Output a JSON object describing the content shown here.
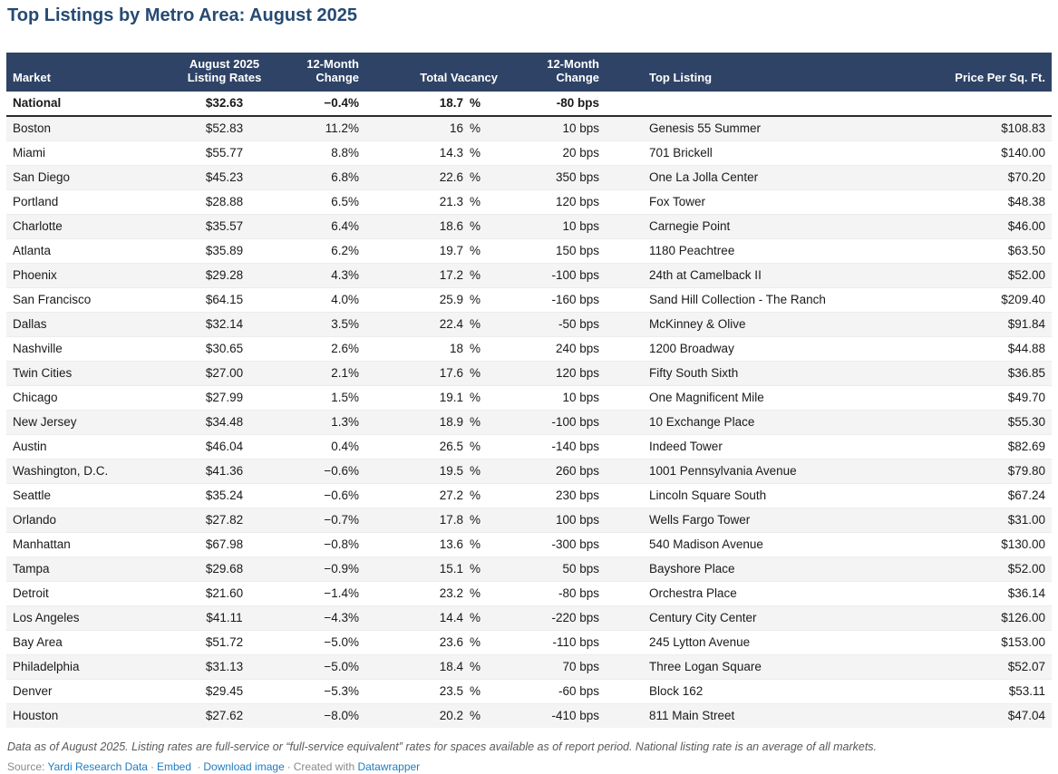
{
  "title": "Top Listings by Metro Area: August 2025",
  "colors": {
    "header_bg": "#2e4366",
    "title_text": "#264a73",
    "stripe": "#f4f4f4",
    "national_border": "#2b2b2b",
    "link_blue": "#1e7cc2",
    "note_gray": "#595959"
  },
  "chart_data": {
    "type": "table",
    "title": "Top Listings by Metro Area: August 2025",
    "columns": [
      {
        "id": "market",
        "label_lines": [
          "Market"
        ],
        "align": "left"
      },
      {
        "id": "rate",
        "label_lines": [
          "August 2025",
          "Listing Rates"
        ],
        "align": "center"
      },
      {
        "id": "change",
        "label_lines": [
          "12-Month",
          "Change"
        ],
        "align": "right"
      },
      {
        "id": "vacancy",
        "label_lines": [
          "Total Vacancy"
        ],
        "align": "right"
      },
      {
        "id": "bps",
        "label_lines": [
          "12-Month",
          "Change"
        ],
        "align": "right"
      },
      {
        "id": "listing",
        "label_lines": [
          "Top Listing"
        ],
        "align": "left"
      },
      {
        "id": "price",
        "label_lines": [
          "Price Per Sq. Ft."
        ],
        "align": "right"
      }
    ],
    "vacancy_unit": "%",
    "rows": [
      {
        "national": true,
        "market": "National",
        "rate": "$32.63",
        "change": "−0.4%",
        "vacancy": "18.7",
        "bps": "-80 bps",
        "listing": "",
        "price": ""
      },
      {
        "market": "Boston",
        "rate": "$52.83",
        "change": "11.2%",
        "vacancy": "16",
        "bps": "10 bps",
        "listing": "Genesis 55 Summer",
        "price": "$108.83"
      },
      {
        "market": "Miami",
        "rate": "$55.77",
        "change": "8.8%",
        "vacancy": "14.3",
        "bps": "20 bps",
        "listing": "701 Brickell",
        "price": "$140.00"
      },
      {
        "market": "San Diego",
        "rate": "$45.23",
        "change": "6.8%",
        "vacancy": "22.6",
        "bps": "350 bps",
        "listing": "One La Jolla Center",
        "price": "$70.20"
      },
      {
        "market": "Portland",
        "rate": "$28.88",
        "change": "6.5%",
        "vacancy": "21.3",
        "bps": "120 bps",
        "listing": "Fox Tower",
        "price": "$48.38"
      },
      {
        "market": "Charlotte",
        "rate": "$35.57",
        "change": "6.4%",
        "vacancy": "18.6",
        "bps": "10 bps",
        "listing": "Carnegie Point",
        "price": "$46.00"
      },
      {
        "market": "Atlanta",
        "rate": "$35.89",
        "change": "6.2%",
        "vacancy": "19.7",
        "bps": "150 bps",
        "listing": "1180 Peachtree",
        "price": "$63.50"
      },
      {
        "market": "Phoenix",
        "rate": "$29.28",
        "change": "4.3%",
        "vacancy": "17.2",
        "bps": "-100 bps",
        "listing": "24th at Camelback II",
        "price": "$52.00"
      },
      {
        "market": "San Francisco",
        "rate": "$64.15",
        "change": "4.0%",
        "vacancy": "25.9",
        "bps": "-160 bps",
        "listing": "Sand Hill Collection - The Ranch",
        "price": "$209.40"
      },
      {
        "market": "Dallas",
        "rate": "$32.14",
        "change": "3.5%",
        "vacancy": "22.4",
        "bps": "-50 bps",
        "listing": "McKinney & Olive",
        "price": "$91.84"
      },
      {
        "market": "Nashville",
        "rate": "$30.65",
        "change": "2.6%",
        "vacancy": "18",
        "bps": "240 bps",
        "listing": "1200 Broadway",
        "price": "$44.88"
      },
      {
        "market": "Twin Cities",
        "rate": "$27.00",
        "change": "2.1%",
        "vacancy": "17.6",
        "bps": "120 bps",
        "listing": "Fifty South Sixth",
        "price": "$36.85"
      },
      {
        "market": "Chicago",
        "rate": "$27.99",
        "change": "1.5%",
        "vacancy": "19.1",
        "bps": "10 bps",
        "listing": "One Magnificent Mile",
        "price": "$49.70"
      },
      {
        "market": "New Jersey",
        "rate": "$34.48",
        "change": "1.3%",
        "vacancy": "18.9",
        "bps": "-100 bps",
        "listing": "10 Exchange Place",
        "price": "$55.30"
      },
      {
        "market": "Austin",
        "rate": "$46.04",
        "change": "0.4%",
        "vacancy": "26.5",
        "bps": "-140 bps",
        "listing": "Indeed Tower",
        "price": "$82.69"
      },
      {
        "market": "Washington, D.C.",
        "rate": "$41.36",
        "change": "−0.6%",
        "vacancy": "19.5",
        "bps": "260 bps",
        "listing": "1001 Pennsylvania Avenue",
        "price": "$79.80"
      },
      {
        "market": "Seattle",
        "rate": "$35.24",
        "change": "−0.6%",
        "vacancy": "27.2",
        "bps": "230 bps",
        "listing": "Lincoln Square South",
        "price": "$67.24"
      },
      {
        "market": "Orlando",
        "rate": "$27.82",
        "change": "−0.7%",
        "vacancy": "17.8",
        "bps": "100 bps",
        "listing": "Wells Fargo Tower",
        "price": "$31.00"
      },
      {
        "market": "Manhattan",
        "rate": "$67.98",
        "change": "−0.8%",
        "vacancy": "13.6",
        "bps": "-300 bps",
        "listing": "540 Madison Avenue",
        "price": "$130.00"
      },
      {
        "market": "Tampa",
        "rate": "$29.68",
        "change": "−0.9%",
        "vacancy": "15.1",
        "bps": "50 bps",
        "listing": "Bayshore Place",
        "price": "$52.00"
      },
      {
        "market": "Detroit",
        "rate": "$21.60",
        "change": "−1.4%",
        "vacancy": "23.2",
        "bps": "-80 bps",
        "listing": "Orchestra Place",
        "price": "$36.14"
      },
      {
        "market": "Los Angeles",
        "rate": "$41.11",
        "change": "−4.3%",
        "vacancy": "14.4",
        "bps": "-220 bps",
        "listing": "Century City Center",
        "price": "$126.00"
      },
      {
        "market": "Bay Area",
        "rate": "$51.72",
        "change": "−5.0%",
        "vacancy": "23.6",
        "bps": "-110 bps",
        "listing": "245 Lytton Avenue",
        "price": "$153.00"
      },
      {
        "market": "Philadelphia",
        "rate": "$31.13",
        "change": "−5.0%",
        "vacancy": "18.4",
        "bps": "70 bps",
        "listing": "Three Logan Square",
        "price": "$52.07"
      },
      {
        "market": "Denver",
        "rate": "$29.45",
        "change": "−5.3%",
        "vacancy": "23.5",
        "bps": "-60 bps",
        "listing": "Block 162",
        "price": "$53.11"
      },
      {
        "market": "Houston",
        "rate": "$27.62",
        "change": "−8.0%",
        "vacancy": "20.2",
        "bps": "-410 bps",
        "listing": "811 Main Street",
        "price": "$47.04"
      }
    ]
  },
  "footer": {
    "note": "Data as of August 2025. Listing rates are full-service or “full-service equivalent” rates for spaces available as of report period. National listing rate is an average of all markets.",
    "source_prefix": "Source:",
    "links": [
      "Yardi Research Data",
      "Embed",
      "Download image"
    ],
    "separator": "·",
    "created_with": "Created with",
    "creator": "Datawrapper"
  }
}
